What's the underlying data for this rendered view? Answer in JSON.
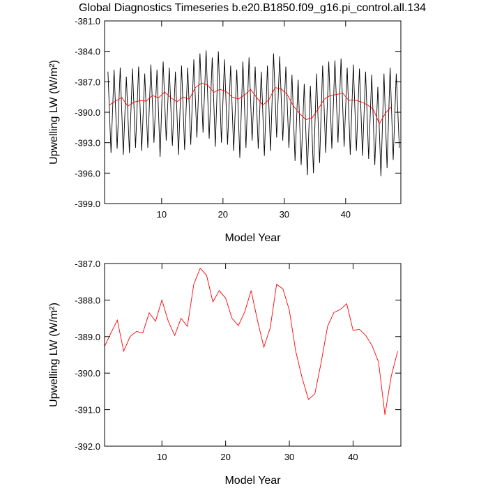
{
  "chart_data": [
    {
      "type": "line",
      "title": "Global Diagnostics Timeseries b.e20.B1850.f09_g16.pi_control.all.134",
      "x_label": "Model Year",
      "y_label": "Upwelling LW (W/m²)",
      "xlim": [
        0.7,
        49
      ],
      "xticks": [
        10,
        20,
        30,
        40
      ],
      "ylim": [
        -399,
        -381
      ],
      "yticks": [
        {
          "value": -399,
          "label": "-399.0"
        },
        {
          "value": -396,
          "label": "-396.0"
        },
        {
          "value": -393,
          "label": "-393.0"
        },
        {
          "value": -390,
          "label": "-390.0"
        },
        {
          "value": -387,
          "label": "-387.0"
        },
        {
          "value": -384,
          "label": "-384.0"
        },
        {
          "value": -381,
          "label": "-381.0"
        }
      ],
      "series": [
        {
          "color": "#000000",
          "x": [
            1.25,
            1.75,
            2.25,
            2.75,
            3.25,
            3.75,
            4.25,
            4.75,
            5.25,
            5.75,
            6.25,
            6.75,
            7.25,
            7.75,
            8.25,
            8.75,
            9.25,
            9.75,
            10.25,
            10.75,
            11.25,
            11.75,
            12.25,
            12.75,
            13.25,
            13.75,
            14.25,
            14.75,
            15.25,
            15.75,
            16.25,
            16.75,
            17.25,
            17.75,
            18.25,
            18.75,
            19.25,
            19.75,
            20.25,
            20.75,
            21.25,
            21.75,
            22.25,
            22.75,
            23.25,
            23.75,
            24.25,
            24.75,
            25.25,
            25.75,
            26.25,
            26.75,
            27.25,
            27.75,
            28.25,
            28.75,
            29.25,
            29.75,
            30.25,
            30.75,
            31.25,
            31.75,
            32.25,
            32.75,
            33.25,
            33.75,
            34.25,
            34.75,
            35.25,
            35.75,
            36.25,
            36.75,
            37.25,
            37.75,
            38.25,
            38.75,
            39.25,
            39.75,
            40.25,
            40.75,
            41.25,
            41.75,
            42.25,
            42.75,
            43.25,
            43.75,
            44.25,
            44.75,
            45.25,
            45.75,
            46.25,
            46.75,
            47.25,
            47.75,
            48.25,
            48.75
          ],
          "values": [
            -386.0,
            -394.0,
            -385.8,
            -393.6,
            -385.6,
            -394.2,
            -386.5,
            -394.0,
            -385.7,
            -393.5,
            -385.5,
            -393.8,
            -386.2,
            -393.5,
            -385.3,
            -393.0,
            -385.8,
            -394.4,
            -385.0,
            -392.8,
            -385.6,
            -393.3,
            -386.0,
            -394.2,
            -385.4,
            -393.7,
            -385.6,
            -393.2,
            -384.8,
            -392.5,
            -384.2,
            -392.0,
            -383.9,
            -392.6,
            -384.6,
            -393.4,
            -384.0,
            -393.0,
            -384.8,
            -393.2,
            -385.4,
            -393.8,
            -385.8,
            -394.5,
            -385.0,
            -393.5,
            -384.6,
            -392.8,
            -385.5,
            -393.6,
            -386.0,
            -394.3,
            -385.4,
            -393.8,
            -384.2,
            -392.5,
            -384.5,
            -392.8,
            -385.5,
            -393.5,
            -386.3,
            -394.8,
            -386.8,
            -395.2,
            -387.2,
            -396.2,
            -387.4,
            -396.0,
            -386.2,
            -395.0,
            -385.4,
            -394.0,
            -385.0,
            -393.6,
            -384.9,
            -393.0,
            -384.7,
            -393.4,
            -385.6,
            -394.2,
            -385.3,
            -393.8,
            -385.7,
            -394.3,
            -386.0,
            -394.6,
            -386.3,
            -395.2,
            -387.5,
            -396.3,
            -386.2,
            -395.5,
            -385.6,
            -394.7,
            -386.2,
            -393.5
          ]
        },
        {
          "color": "#ff0000",
          "x": [
            1.5,
            2.5,
            3.5,
            4.5,
            5.5,
            6.5,
            7.5,
            8.5,
            9.5,
            10.5,
            11.5,
            12.5,
            13.5,
            14.5,
            15.5,
            16.5,
            17.5,
            18.5,
            19.5,
            20.5,
            21.5,
            22.5,
            23.5,
            24.5,
            25.5,
            26.5,
            27.5,
            28.5,
            29.5,
            30.5,
            31.5,
            32.5,
            33.5,
            34.5,
            35.5,
            36.5,
            37.5,
            38.5,
            39.5,
            40.5,
            41.5,
            42.5,
            43.5,
            44.5,
            45.5,
            46.5,
            47.5
          ],
          "values": [
            -389.27,
            -388.9,
            -388.55,
            -389.4,
            -389.0,
            -388.86,
            -388.9,
            -388.35,
            -388.58,
            -388.0,
            -388.58,
            -388.97,
            -388.5,
            -388.72,
            -387.57,
            -387.13,
            -387.32,
            -388.05,
            -387.74,
            -387.95,
            -388.5,
            -388.7,
            -388.32,
            -387.74,
            -388.56,
            -389.29,
            -388.76,
            -387.57,
            -387.7,
            -388.28,
            -389.4,
            -390.13,
            -390.72,
            -390.57,
            -389.7,
            -388.72,
            -388.34,
            -388.26,
            -388.1,
            -388.83,
            -388.8,
            -388.97,
            -389.25,
            -389.7,
            -391.14,
            -390.08,
            -389.4
          ]
        }
      ]
    },
    {
      "type": "line",
      "x_label": "Model Year",
      "y_label": "Upwelling LW (W/m²)",
      "xlim": [
        1,
        47.5
      ],
      "xticks": [
        10,
        20,
        30,
        40
      ],
      "ylim": [
        -392,
        -387
      ],
      "yticks": [
        {
          "value": -392,
          "label": "-392.0"
        },
        {
          "value": -391,
          "label": "-391.0"
        },
        {
          "value": -390,
          "label": "-390.0"
        },
        {
          "value": -389,
          "label": "-389.0"
        },
        {
          "value": -388,
          "label": "-388.0"
        },
        {
          "value": -387,
          "label": "-387.0"
        }
      ],
      "series": [
        {
          "color": "#ff0000",
          "x": [
            1,
            2,
            3,
            4,
            5,
            6,
            7,
            8,
            9,
            10,
            11,
            12,
            13,
            14,
            15,
            16,
            17,
            18,
            19,
            20,
            21,
            22,
            23,
            24,
            25,
            26,
            27,
            28,
            29,
            30,
            31,
            32,
            33,
            34,
            35,
            36,
            37,
            38,
            39,
            40,
            41,
            42,
            43,
            44,
            45,
            46,
            47
          ],
          "values": [
            -389.27,
            -388.9,
            -388.55,
            -389.4,
            -389.0,
            -388.86,
            -388.9,
            -388.35,
            -388.58,
            -388.0,
            -388.58,
            -388.97,
            -388.5,
            -388.72,
            -387.57,
            -387.13,
            -387.32,
            -388.05,
            -387.74,
            -387.95,
            -388.5,
            -388.7,
            -388.32,
            -387.74,
            -388.56,
            -389.29,
            -388.76,
            -387.57,
            -387.7,
            -388.28,
            -389.4,
            -390.13,
            -390.72,
            -390.57,
            -389.7,
            -388.72,
            -388.34,
            -388.26,
            -388.1,
            -388.83,
            -388.8,
            -388.97,
            -389.25,
            -389.7,
            -391.14,
            -390.08,
            -389.4
          ]
        }
      ]
    }
  ]
}
